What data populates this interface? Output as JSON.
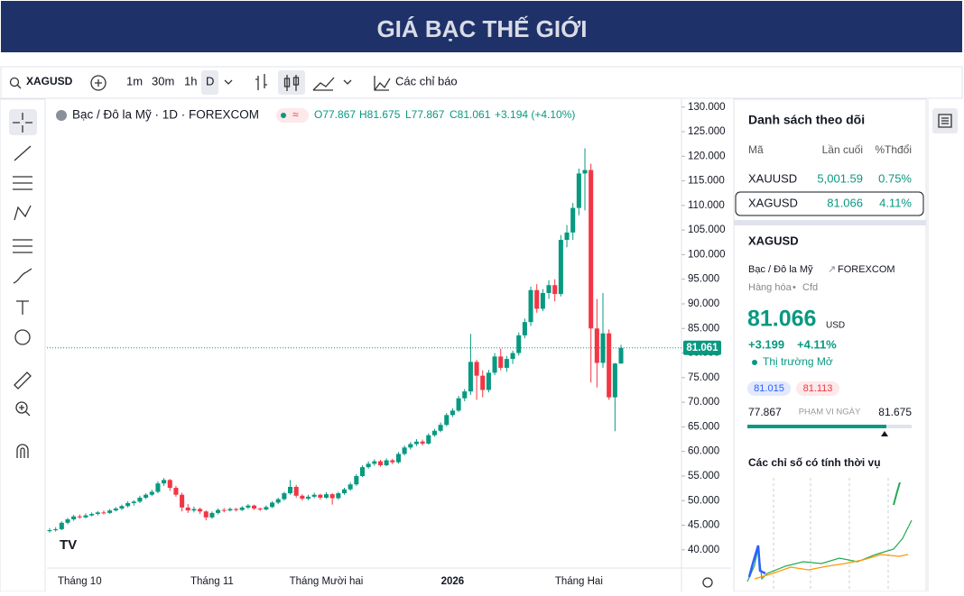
{
  "banner": {
    "title": "GIÁ BẠC THẾ GIỚI"
  },
  "toolbar": {
    "symbol": "XAGUSD",
    "intervals": [
      "1m",
      "30m",
      "1h",
      "D"
    ],
    "indicators": "Các chỉ báo"
  },
  "legend": {
    "open": "O77.867",
    "high": "H81.675",
    "low": "L77.867",
    "close": "C81.061",
    "change": "+3.194 (+4.10%)"
  },
  "chart_data": {
    "type": "candlestick",
    "title": "Bạc / Đô la Mỹ · 1D · FOREXCOM",
    "up_color": "#089981",
    "down_color": "#f23645",
    "categories": [
      null,
      null,
      null,
      null,
      null,
      "Tháng 10",
      null,
      null,
      null,
      null,
      null,
      null,
      null,
      null,
      null,
      null,
      null,
      null,
      null,
      null,
      null,
      null,
      null,
      null,
      null,
      null,
      null,
      "Tháng 11",
      null,
      null,
      null,
      null,
      null,
      null,
      null,
      null,
      null,
      null,
      null,
      null,
      null,
      null,
      null,
      null,
      null,
      null,
      "Tháng Mười hai",
      null,
      null,
      null,
      null,
      null,
      null,
      null,
      null,
      null,
      null,
      null,
      null,
      null,
      null,
      null,
      null,
      null,
      null,
      null,
      null,
      "2026",
      null,
      null,
      null,
      null,
      null,
      null,
      null,
      null,
      null,
      null,
      null,
      null,
      null,
      null,
      null,
      null,
      null,
      null,
      null,
      null,
      "Tháng Hai",
      null,
      null,
      null,
      null,
      null
    ],
    "candles": [
      [
        43.8,
        44.4,
        43.5,
        44.0
      ],
      [
        44.0,
        44.6,
        43.7,
        44.2
      ],
      [
        44.2,
        45.8,
        44.0,
        45.5
      ],
      [
        45.5,
        46.5,
        45.2,
        46.2
      ],
      [
        46.2,
        47.1,
        45.9,
        46.8
      ],
      [
        46.8,
        47.2,
        46.3,
        46.6
      ],
      [
        46.6,
        47.4,
        46.4,
        47.0
      ],
      [
        47.0,
        47.6,
        46.8,
        47.3
      ],
      [
        47.3,
        47.9,
        47.0,
        47.6
      ],
      [
        47.6,
        48.0,
        47.2,
        47.5
      ],
      [
        47.5,
        48.3,
        47.3,
        48.0
      ],
      [
        48.0,
        48.7,
        47.8,
        48.4
      ],
      [
        48.4,
        49.2,
        48.1,
        48.9
      ],
      [
        48.9,
        49.9,
        48.6,
        49.5
      ],
      [
        49.5,
        50.1,
        49.0,
        49.8
      ],
      [
        49.8,
        51.0,
        49.5,
        50.6
      ],
      [
        50.6,
        51.5,
        50.3,
        51.2
      ],
      [
        51.2,
        52.2,
        50.9,
        51.8
      ],
      [
        51.8,
        53.9,
        51.5,
        53.5
      ],
      [
        53.5,
        54.6,
        53.0,
        54.2
      ],
      [
        54.2,
        54.4,
        52.0,
        52.6
      ],
      [
        52.6,
        53.0,
        50.8,
        51.2
      ],
      [
        51.2,
        51.6,
        47.8,
        48.6
      ],
      [
        48.6,
        49.3,
        47.5,
        48.0
      ],
      [
        48.0,
        48.8,
        47.6,
        48.3
      ],
      [
        48.3,
        48.6,
        47.3,
        47.8
      ],
      [
        47.8,
        48.0,
        46.0,
        46.6
      ],
      [
        46.6,
        47.8,
        46.3,
        47.5
      ],
      [
        47.5,
        48.4,
        47.2,
        48.1
      ],
      [
        48.1,
        48.5,
        47.6,
        48.0
      ],
      [
        48.0,
        48.6,
        47.8,
        48.3
      ],
      [
        48.3,
        48.5,
        47.8,
        48.1
      ],
      [
        48.1,
        48.9,
        47.9,
        48.6
      ],
      [
        48.6,
        49.3,
        48.3,
        49.0
      ],
      [
        49.0,
        49.2,
        48.1,
        48.4
      ],
      [
        48.4,
        48.6,
        47.9,
        48.2
      ],
      [
        48.2,
        49.0,
        48.0,
        48.7
      ],
      [
        48.7,
        49.9,
        48.5,
        49.6
      ],
      [
        49.6,
        50.6,
        49.3,
        50.3
      ],
      [
        50.3,
        51.8,
        50.0,
        51.5
      ],
      [
        51.5,
        54.2,
        51.2,
        52.8
      ],
      [
        52.8,
        53.2,
        50.6,
        51.0
      ],
      [
        51.0,
        51.3,
        50.0,
        50.4
      ],
      [
        50.4,
        51.2,
        50.1,
        50.8
      ],
      [
        50.8,
        51.6,
        50.5,
        51.2
      ],
      [
        51.2,
        51.4,
        50.2,
        50.6
      ],
      [
        50.6,
        51.7,
        50.4,
        51.3
      ],
      [
        51.3,
        51.5,
        49.2,
        50.5
      ],
      [
        50.5,
        51.8,
        50.2,
        51.5
      ],
      [
        51.5,
        52.6,
        51.2,
        52.3
      ],
      [
        52.3,
        53.7,
        52.0,
        53.3
      ],
      [
        53.3,
        55.4,
        53.0,
        55.0
      ],
      [
        55.0,
        57.2,
        54.8,
        56.8
      ],
      [
        56.8,
        58.0,
        56.5,
        57.5
      ],
      [
        57.5,
        58.4,
        57.1,
        58.0
      ],
      [
        58.0,
        58.3,
        56.9,
        57.2
      ],
      [
        57.2,
        58.6,
        57.0,
        58.2
      ],
      [
        58.2,
        58.5,
        57.4,
        57.8
      ],
      [
        57.8,
        59.9,
        57.5,
        59.5
      ],
      [
        59.5,
        61.2,
        59.2,
        60.8
      ],
      [
        60.8,
        61.9,
        60.4,
        61.5
      ],
      [
        61.5,
        62.5,
        61.1,
        62.0
      ],
      [
        62.0,
        62.4,
        61.2,
        61.6
      ],
      [
        61.6,
        63.7,
        61.4,
        63.3
      ],
      [
        63.3,
        64.6,
        63.0,
        64.2
      ],
      [
        64.2,
        65.9,
        63.9,
        65.4
      ],
      [
        65.4,
        67.8,
        65.1,
        67.4
      ],
      [
        67.4,
        68.8,
        67.0,
        68.3
      ],
      [
        68.3,
        71.3,
        68.0,
        70.8
      ],
      [
        70.8,
        72.7,
        70.2,
        72.2
      ],
      [
        72.2,
        83.9,
        71.5,
        78.2
      ],
      [
        78.2,
        78.6,
        70.5,
        75.4
      ],
      [
        75.4,
        76.5,
        71.0,
        72.5
      ],
      [
        72.5,
        76.6,
        72.0,
        76.0
      ],
      [
        76.0,
        80.0,
        75.5,
        79.3
      ],
      [
        79.3,
        80.9,
        76.5,
        77.0
      ],
      [
        77.0,
        79.4,
        76.2,
        78.8
      ],
      [
        78.8,
        80.5,
        77.8,
        80.0
      ],
      [
        80.0,
        84.2,
        79.5,
        83.6
      ],
      [
        83.6,
        87.0,
        83.0,
        86.3
      ],
      [
        86.3,
        93.5,
        85.5,
        92.8
      ],
      [
        92.8,
        94.0,
        88.2,
        89.0
      ],
      [
        89.0,
        93.0,
        88.5,
        92.2
      ],
      [
        92.2,
        94.8,
        91.0,
        93.8
      ],
      [
        93.8,
        95.0,
        90.5,
        92.0
      ],
      [
        92.0,
        104.0,
        91.5,
        103.0
      ],
      [
        103.0,
        106.0,
        101.5,
        104.5
      ],
      [
        104.5,
        110.5,
        103.0,
        109.5
      ],
      [
        109.5,
        117.5,
        108.0,
        116.5
      ],
      [
        116.5,
        121.6,
        109.0,
        117.2
      ],
      [
        117.2,
        118.5,
        74.0,
        85.0
      ],
      [
        85.0,
        91.0,
        73.0,
        78.0
      ],
      [
        78.0,
        92.2,
        77.0,
        84.0
      ],
      [
        84.0,
        84.8,
        70.5,
        71.0
      ],
      [
        71.0,
        78.0,
        64.1,
        77.867
      ],
      [
        77.867,
        81.675,
        77.867,
        81.061
      ]
    ],
    "ylim": [
      36.3,
      131.6
    ],
    "yticks": [
      {
        "value": 40,
        "label": "40.000"
      },
      {
        "value": 45,
        "label": "45.000"
      },
      {
        "value": 50,
        "label": "50.000"
      },
      {
        "value": 55,
        "label": "55.000"
      },
      {
        "value": 60,
        "label": "60.000"
      },
      {
        "value": 65,
        "label": "65.000"
      },
      {
        "value": 70,
        "label": "70.000"
      },
      {
        "value": 75,
        "label": "75.000"
      },
      {
        "value": 80,
        "label": "80.000"
      },
      {
        "value": 85,
        "label": "85.000"
      },
      {
        "value": 90,
        "label": "90.000"
      },
      {
        "value": 95,
        "label": "95.000"
      },
      {
        "value": 100,
        "label": "100.000"
      },
      {
        "value": 105,
        "label": "105.000"
      },
      {
        "value": 110,
        "label": "110.000"
      },
      {
        "value": 115,
        "label": "115.000"
      },
      {
        "value": 120,
        "label": "120.000"
      },
      {
        "value": 125,
        "label": "125.000"
      },
      {
        "value": 130,
        "label": "130.000"
      }
    ],
    "grid": false,
    "last_price": {
      "value": 81.061,
      "label": "81.061"
    }
  },
  "watchlist": {
    "title": "Danh sách theo dõi",
    "columns": [
      "Mã",
      "Lần cuối",
      "%Thđổi"
    ],
    "rows": [
      [
        "XAUUSD",
        "5,001.59",
        "0.75%"
      ],
      [
        "XAGUSD",
        "81.066",
        "4.11%"
      ]
    ]
  },
  "detail": {
    "symbol": "XAGUSD",
    "name": "Bạc / Đô la Mỹ",
    "exchange": "FOREXCOM",
    "category": "Hàng hóa",
    "kind": "Cfd",
    "price": "81.066",
    "currency": "USD",
    "change": "+3.199",
    "change_pct": "+4.11%",
    "status": "Thị trường Mở",
    "bid": "81.015",
    "ask": "81.113",
    "range_low": "77.867",
    "range_label": "PHẠM VI NGÀY",
    "range_high": "81.675",
    "seasonal": "Các chỉ số có tính thời vụ"
  }
}
